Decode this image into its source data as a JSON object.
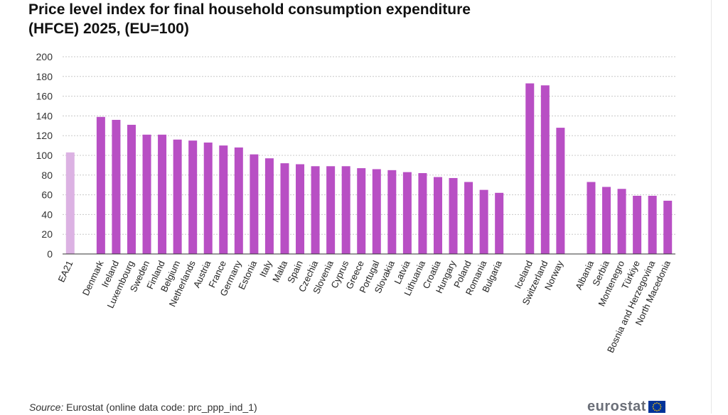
{
  "title_line1": "Price level index for final household consumption expenditure",
  "title_line2": "(HFCE) 2025, (EU=100)",
  "source_label": "Source:",
  "source_text": " Eurostat (online data code: prc_ppp_ind_1)",
  "logo_text": "eurostat",
  "colors": {
    "bar": "#b84fc4",
    "bar_highlight": "#dcb2e3",
    "grid": "#c8c8c8",
    "axis": "#333333",
    "logo_flag": "#003399",
    "logo_stars": "#ffcc00"
  },
  "chart_data": {
    "type": "bar",
    "title": "Price level index for final household consumption expenditure (HFCE) 2025, (EU=100)",
    "ylim": [
      0,
      200
    ],
    "yticks": [
      0,
      20,
      40,
      60,
      80,
      100,
      120,
      140,
      160,
      180,
      200
    ],
    "grid": true,
    "categories": [
      "EA21",
      "",
      "Denmark",
      "Ireland",
      "Luxembourg",
      "Sweden",
      "Finland",
      "Belgium",
      "Netherlands",
      "Austria",
      "France",
      "Germany",
      "Estonia",
      "Italy",
      "Malta",
      "Spain",
      "Czechia",
      "Slovenia",
      "Cyprus",
      "Greece",
      "Portugal",
      "Slovakia",
      "Latvia",
      "Lithuania",
      "Croatia",
      "Hungary",
      "Poland",
      "Romania",
      "Bulgaria",
      "",
      "Iceland",
      "Switzerland",
      "Norway",
      "",
      "Albania",
      "Serbia",
      "Montenegro",
      "Türkiye",
      "Bosnia and Herzegovina",
      "North Macedonia"
    ],
    "values": [
      103,
      null,
      139,
      136,
      131,
      121,
      121,
      116,
      115,
      113,
      110,
      108,
      101,
      97,
      92,
      91,
      89,
      89,
      89,
      87,
      86,
      85,
      83,
      82,
      78,
      77,
      73,
      65,
      62,
      null,
      173,
      171,
      128,
      null,
      73,
      68,
      66,
      59,
      59,
      54
    ],
    "highlight": [
      "EA21"
    ]
  }
}
